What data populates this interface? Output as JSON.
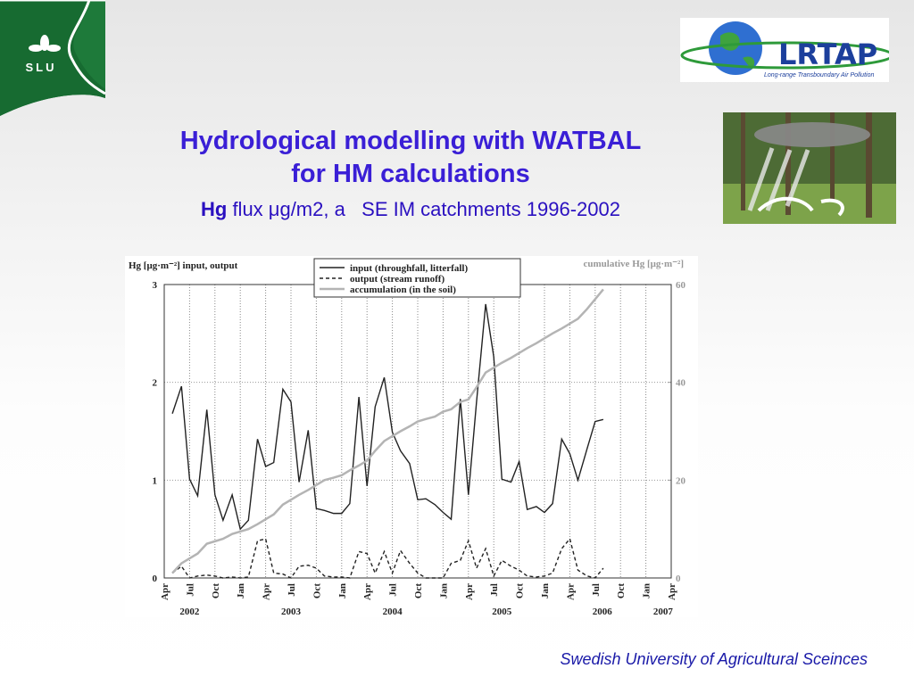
{
  "slide": {
    "logo_left": "SLU",
    "logo_right": "LRTAP",
    "logo_right_sub": "Long-range Transboundary Air Pollution",
    "title_line1": "Hydrological modelling with WATBAL",
    "title_line2": "for HM calculations",
    "subtitle_bold": "Hg",
    "subtitle": " flux μg/m2, a   SE IM catchments 1996-2002",
    "footer": "Swedish University of Agricultural Sceinces"
  },
  "chart_data": {
    "type": "line",
    "ylabel": "Hg [μg·m⁻²]   input, output",
    "y2label": "cumulative Hg [μg·m⁻²]",
    "legend": "upper center",
    "grid": true,
    "xlim": [
      2002.25,
      2007.25
    ],
    "ylim": [
      0,
      3
    ],
    "y2lim": [
      0,
      60
    ],
    "yticks": [
      0,
      1,
      2,
      3
    ],
    "y2ticks": [
      0,
      20,
      40,
      60
    ],
    "xticks": [
      {
        "value": 2002.25,
        "label": "Apr"
      },
      {
        "value": 2002.5,
        "label": "Jul"
      },
      {
        "value": 2002.75,
        "label": "Oct"
      },
      {
        "value": 2003,
        "label": "Jan"
      },
      {
        "value": 2003.25,
        "label": "Apr"
      },
      {
        "value": 2003.5,
        "label": "Jul"
      },
      {
        "value": 2003.75,
        "label": "Oct"
      },
      {
        "value": 2004,
        "label": "Jan"
      },
      {
        "value": 2004.25,
        "label": "Apr"
      },
      {
        "value": 2004.5,
        "label": "Jul"
      },
      {
        "value": 2004.75,
        "label": "Oct"
      },
      {
        "value": 2005,
        "label": "Jan"
      },
      {
        "value": 2005.25,
        "label": "Apr"
      },
      {
        "value": 2005.5,
        "label": "Jul"
      },
      {
        "value": 2005.75,
        "label": "Oct"
      },
      {
        "value": 2006,
        "label": "Jan"
      },
      {
        "value": 2006.25,
        "label": "Apr"
      },
      {
        "value": 2006.5,
        "label": "Jul"
      },
      {
        "value": 2006.75,
        "label": "Oct"
      },
      {
        "value": 2007,
        "label": "Jan"
      },
      {
        "value": 2007.25,
        "label": "Apr"
      }
    ],
    "x_year_labels": [
      {
        "value": 2002.5,
        "label": "2002"
      },
      {
        "value": 2003.5,
        "label": "2003"
      },
      {
        "value": 2004.5,
        "label": "2004"
      },
      {
        "value": 2005.58,
        "label": "2005"
      },
      {
        "value": 2006.57,
        "label": "2006"
      },
      {
        "value": 2007.17,
        "label": "2007"
      }
    ],
    "x": [
      2002.33,
      2002.42,
      2002.5,
      2002.58,
      2002.67,
      2002.75,
      2002.83,
      2002.92,
      2003,
      2003.08,
      2003.17,
      2003.25,
      2003.33,
      2003.42,
      2003.5,
      2003.58,
      2003.67,
      2003.75,
      2003.83,
      2003.92,
      2004,
      2004.08,
      2004.17,
      2004.25,
      2004.33,
      2004.42,
      2004.5,
      2004.58,
      2004.67,
      2004.75,
      2004.83,
      2004.92,
      2005,
      2005.08,
      2005.17,
      2005.25,
      2005.33,
      2005.42,
      2005.5,
      2005.58,
      2005.67,
      2005.75,
      2005.83,
      2005.92,
      2006,
      2006.08,
      2006.17,
      2006.25,
      2006.33,
      2006.42,
      2006.5,
      2006.58
    ],
    "series": [
      {
        "name": "input (throughfall, litterfall)",
        "color": "#222222",
        "style": "solid",
        "values": [
          1.68,
          1.96,
          1.01,
          0.84,
          1.72,
          0.85,
          0.59,
          0.85,
          0.5,
          0.59,
          1.42,
          1.14,
          1.18,
          1.93,
          1.8,
          0.98,
          1.51,
          0.71,
          0.69,
          0.66,
          0.66,
          0.76,
          1.85,
          0.94,
          1.75,
          2.05,
          1.49,
          1.3,
          1.17,
          0.8,
          0.81,
          0.75,
          0.67,
          0.6,
          1.83,
          0.85,
          1.8,
          2.8,
          2.26,
          1.01,
          0.98,
          1.19,
          0.7,
          0.73,
          0.67,
          0.76,
          1.42,
          1.27,
          1.0,
          1.32,
          1.6,
          1.62
        ]
      },
      {
        "name": "output (stream runoff)",
        "color": "#222222",
        "style": "dashed",
        "values": [
          0.05,
          0.12,
          0,
          0.02,
          0.03,
          0.02,
          0,
          0.01,
          0,
          0.01,
          0.38,
          0.4,
          0.05,
          0.04,
          0,
          0.12,
          0.13,
          0.1,
          0.02,
          0.01,
          0.01,
          0,
          0.27,
          0.25,
          0.05,
          0.27,
          0.05,
          0.28,
          0.15,
          0.05,
          0,
          0,
          0,
          0.15,
          0.18,
          0.38,
          0.1,
          0.3,
          0.02,
          0.18,
          0.12,
          0.08,
          0.02,
          0.01,
          0.02,
          0.05,
          0.3,
          0.4,
          0.08,
          0.02,
          0,
          0.1
        ]
      },
      {
        "name": "accumulation (in the soil)",
        "color": "#b4b4b4",
        "style": "solid",
        "axis": "y2",
        "values": [
          1,
          3,
          4,
          5,
          7,
          7.5,
          8,
          9,
          9.5,
          10,
          11,
          12,
          13,
          15,
          16,
          17,
          18,
          19,
          20,
          20.5,
          21,
          22,
          23,
          24,
          26,
          28,
          29,
          30,
          31,
          32,
          32.5,
          33,
          34,
          34.5,
          36,
          36.5,
          39,
          42,
          43,
          44,
          45,
          46,
          47,
          48,
          49,
          50,
          51,
          52,
          53,
          55,
          57,
          59
        ]
      }
    ]
  }
}
